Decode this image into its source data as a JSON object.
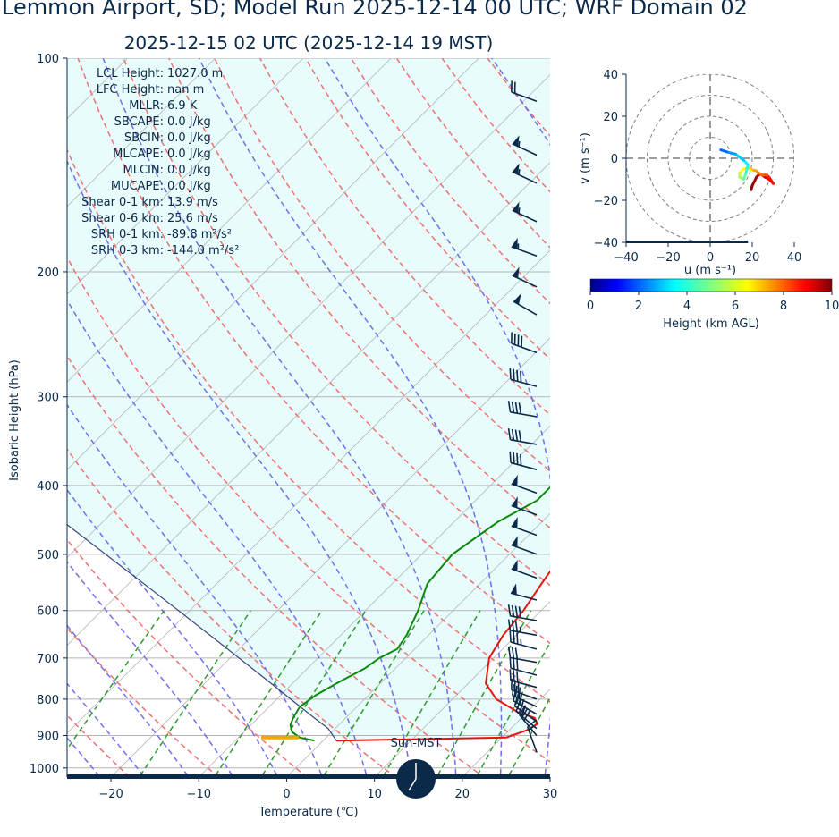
{
  "title": "Lemmon Airport, SD; Model Run 2025-12-14 00 UTC; WRF Domain 02",
  "subtitle": "2025-12-15 02 UTC  (2025-12-14 19 MST)",
  "colors": {
    "text": "#0b2a4a",
    "temperature": "#e8120c",
    "dewpoint": "#0a8a0a",
    "parcel": "#33407a",
    "dry_adiabat": "#f07070",
    "moist_adiabat": "#7070ee",
    "mixing_ratio": "#2e9b2e",
    "shade": "#e8fcfc",
    "lcl_marker": "#f5a500",
    "barb": "#0b2a4a"
  },
  "indices": [
    "LCL Height: 1027.0 m",
    "LFC Height: nan m",
    "MLLR: 6.9 K",
    "SBCAPE: 0.0 J/kg",
    "SBCIN: 0.0 J/kg",
    "MLCAPE: 0.0 J/kg",
    "MLCIN: 0.0 J/kg",
    "MUCAPE: 0.0 J/kg",
    "Shear 0-1 km: 13.9 m/s",
    "Shear 0-6 km: 25.6 m/s",
    "SRH 0-1 km: -89.8 m²/s²",
    "SRH 0-3 km: -144.0 m²/s²"
  ],
  "sun_label": "Sun-MST",
  "chart_data": [
    {
      "type": "line",
      "name": "skew-T log-P",
      "xlabel": "Temperature (℃)",
      "ylabel": "Isobaric Height (hPa)",
      "xlim": [
        -25,
        30
      ],
      "ylim": [
        1030,
        100
      ],
      "xticks": [
        -20,
        -10,
        0,
        10,
        20,
        30
      ],
      "yticks": [
        100,
        200,
        300,
        400,
        500,
        600,
        700,
        800,
        900,
        1000
      ],
      "log_y": true,
      "skew": true,
      "grid": true,
      "series": [
        {
          "name": "temperature",
          "p": [
            915,
            906,
            885,
            867,
            850,
            835,
            800,
            760,
            700,
            650,
            600,
            550,
            500,
            450,
            400,
            350,
            300,
            270,
            240,
            210,
            190,
            160,
            130,
            100
          ],
          "t": [
            1.5,
            20.5,
            22,
            22.5,
            21.5,
            19,
            15,
            12,
            9.5,
            8.5,
            8,
            7,
            6,
            5.5,
            4.5,
            3,
            0.5,
            -1,
            -3.5,
            -7.2,
            -8.8,
            -7.5,
            -8,
            -11
          ]
        },
        {
          "name": "dewpoint",
          "p": [
            915,
            906,
            890,
            870,
            850,
            820,
            790,
            760,
            725,
            700,
            680,
            650,
            600,
            550,
            500,
            450,
            420,
            390,
            360,
            330,
            300,
            270,
            240,
            210,
            180,
            160,
            130,
            110,
            100
          ],
          "t": [
            -1,
            -3,
            -4.5,
            -5.5,
            -6,
            -6.5,
            -6,
            -5,
            -3.5,
            -3,
            -2,
            -2.5,
            -4,
            -6,
            -6.5,
            -5,
            -3,
            -3,
            -3,
            -1,
            -1,
            -3,
            -5.5,
            -7,
            -4,
            -2,
            0,
            3,
            4
          ]
        },
        {
          "name": "parcel",
          "p": [
            915,
            880,
            850,
            800,
            750,
            700,
            650,
            600,
            550,
            500,
            450,
            400,
            350
          ],
          "t": [
            1.5,
            -0.8,
            -3.6,
            -8.4,
            -13.5,
            -19,
            -24.9,
            -31.3,
            -38.3,
            -46,
            -54.5,
            -63.9,
            -74.4
          ]
        }
      ],
      "lcl_pressure": 906
    },
    {
      "type": "line",
      "name": "hodograph",
      "xlabel": "u (m s⁻¹)",
      "ylabel": "v (m s⁻¹)",
      "xlim": [
        -40,
        40
      ],
      "ylim": [
        -40,
        40
      ],
      "xticks": [
        -40,
        -20,
        0,
        20,
        40
      ],
      "yticks": [
        -40,
        -20,
        0,
        20,
        40
      ],
      "rings": [
        10,
        20,
        30,
        40
      ],
      "colorbar": {
        "label": "Height (km AGL)",
        "ticks": [
          0,
          2,
          4,
          6,
          8,
          10
        ]
      },
      "series": [
        {
          "name": "wind",
          "u": [
            19.5,
            20,
            21,
            22,
            23,
            24,
            26,
            28,
            30,
            28,
            27,
            25,
            23,
            22,
            20,
            19,
            16,
            14,
            14,
            16,
            17,
            18,
            16,
            12,
            8,
            5
          ],
          "v": [
            -15,
            -13,
            -11,
            -9,
            -8,
            -7.5,
            -9,
            -10,
            -12,
            -9,
            -8,
            -8,
            -7,
            -6,
            -5.5,
            -5,
            -5,
            -7,
            -9,
            -10,
            -7,
            -3,
            -1,
            2,
            3,
            4
          ],
          "height_km": [
            0.1,
            0.2,
            0.3,
            0.4,
            0.5,
            0.7,
            0.9,
            1.0,
            1.2,
            1.5,
            1.8,
            2.1,
            2.4,
            2.7,
            3.0,
            3.3,
            3.6,
            4.0,
            4.5,
            5.0,
            5.5,
            6.0,
            6.5,
            7.0,
            7.5,
            8.0
          ]
        }
      ]
    }
  ],
  "barbs": [
    {
      "p": 115,
      "speed": 20,
      "dir": 290
    },
    {
      "p": 137,
      "speed": 55,
      "dir": 295
    },
    {
      "p": 150,
      "speed": 55,
      "dir": 295
    },
    {
      "p": 170,
      "speed": 55,
      "dir": 295
    },
    {
      "p": 190,
      "speed": 55,
      "dir": 290
    },
    {
      "p": 210,
      "speed": 50,
      "dir": 295
    },
    {
      "p": 230,
      "speed": 50,
      "dir": 300
    },
    {
      "p": 260,
      "speed": 40,
      "dir": 290
    },
    {
      "p": 290,
      "speed": 40,
      "dir": 285
    },
    {
      "p": 320,
      "speed": 40,
      "dir": 280
    },
    {
      "p": 350,
      "speed": 40,
      "dir": 280
    },
    {
      "p": 380,
      "speed": 40,
      "dir": 285
    },
    {
      "p": 410,
      "speed": 50,
      "dir": 290
    },
    {
      "p": 440,
      "speed": 50,
      "dir": 290
    },
    {
      "p": 470,
      "speed": 50,
      "dir": 290
    },
    {
      "p": 500,
      "speed": 50,
      "dir": 290
    },
    {
      "p": 540,
      "speed": 50,
      "dir": 290
    },
    {
      "p": 580,
      "speed": 50,
      "dir": 285
    },
    {
      "p": 620,
      "speed": 40,
      "dir": 280
    },
    {
      "p": 650,
      "speed": 35,
      "dir": 280
    },
    {
      "p": 680,
      "speed": 35,
      "dir": 285
    },
    {
      "p": 710,
      "speed": 30,
      "dir": 280
    },
    {
      "p": 740,
      "speed": 30,
      "dir": 285
    },
    {
      "p": 770,
      "speed": 30,
      "dir": 285
    },
    {
      "p": 800,
      "speed": 30,
      "dir": 290
    },
    {
      "p": 820,
      "speed": 30,
      "dir": 295
    },
    {
      "p": 840,
      "speed": 30,
      "dir": 300
    },
    {
      "p": 860,
      "speed": 30,
      "dir": 305
    },
    {
      "p": 880,
      "speed": 30,
      "dir": 310
    },
    {
      "p": 900,
      "speed": 30,
      "dir": 320
    },
    {
      "p": 950,
      "speed": 15,
      "dir": 340
    }
  ]
}
